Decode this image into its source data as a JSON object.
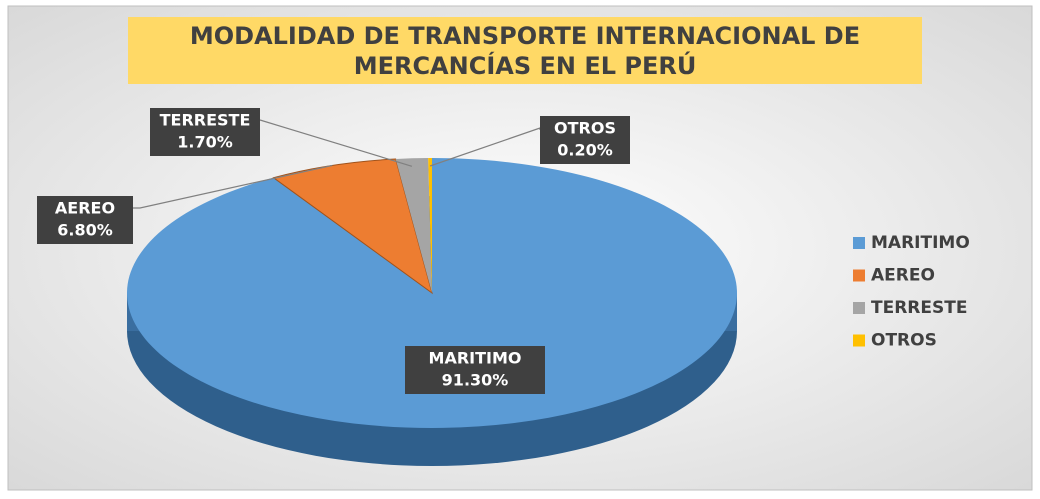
{
  "chart_data": {
    "type": "pie",
    "title": "MODALIDAD DE TRANSPORTE INTERNACIONAL DE MERCANCÍAS EN EL PERÚ",
    "categories": [
      "MARITIMO",
      "AEREO",
      "TERRESTE",
      "OTROS"
    ],
    "values": [
      91.3,
      6.8,
      1.7,
      0.2
    ],
    "value_labels": [
      "91.30%",
      "6.80%",
      "1.70%",
      "0.20%"
    ],
    "colors": [
      "#5b9bd5",
      "#ed7d31",
      "#a5a5a5",
      "#ffc000"
    ],
    "legend": "right"
  }
}
